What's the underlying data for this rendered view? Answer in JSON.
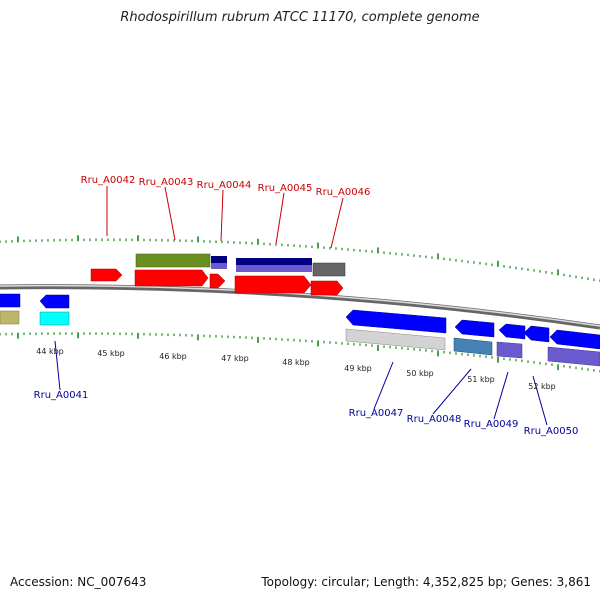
{
  "title": "Rhodospirillum rubrum ATCC 11170, complete genome",
  "footer": {
    "accession": "Accession: NC_007643",
    "summary": "Topology: circular; Length: 4,352,825 bp; Genes: 3,861"
  },
  "scale_labels": [
    "44 kbp",
    "45 kbp",
    "46 kbp",
    "47 kbp",
    "48 kbp",
    "49 kbp",
    "50 kbp",
    "51 kbp",
    "52 kbp"
  ],
  "colors": {
    "forward_label": "#cc0000",
    "reverse_label": "#000099",
    "backbone": "#777777",
    "tick": "#1a8a1a"
  },
  "forward_genes": [
    {
      "name": "Rru_A0042",
      "color": "#ff0000"
    },
    {
      "name": "Rru_A0043",
      "color": "#ff0000"
    },
    {
      "name": "Rru_A0044",
      "color": "#ff0000"
    },
    {
      "name": "Rru_A0045",
      "color": "#ff0000"
    },
    {
      "name": "Rru_A0046",
      "color": "#ff0000"
    }
  ],
  "reverse_genes": [
    {
      "name": "Rru_A0041",
      "color": "#0000ff"
    },
    {
      "name": "Rru_A0047",
      "color": "#0000ff"
    },
    {
      "name": "Rru_A0048",
      "color": "#0000ff"
    },
    {
      "name": "Rru_A0049",
      "color": "#0000ff"
    },
    {
      "name": "Rru_A0050",
      "color": "#0000ff"
    }
  ]
}
